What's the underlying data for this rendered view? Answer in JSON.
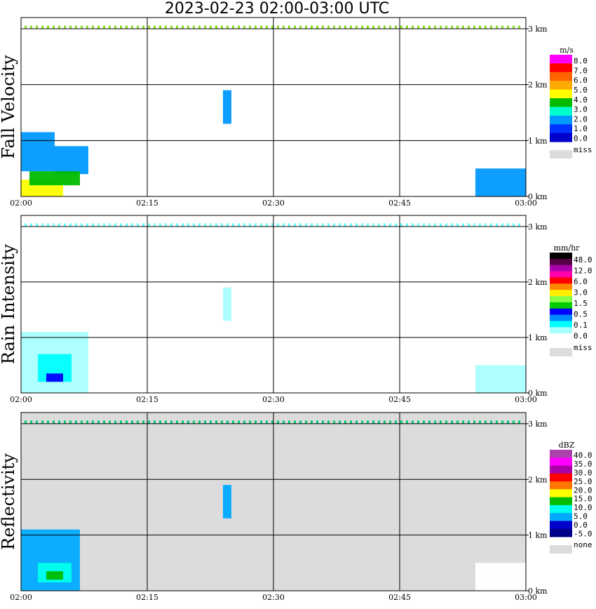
{
  "page": {
    "title": "2023-02-23  02:00-03:00 UTC"
  },
  "chart_data": [
    {
      "type": "heatmap",
      "title": "Fall Velocity",
      "ylabel": "Fall Velocity",
      "x_ticks": [
        "02:00",
        "02:15",
        "02:30",
        "02:45",
        "03:00"
      ],
      "y_ticks": [
        "0 km",
        "1 km",
        "2 km",
        "3 km"
      ],
      "xlim": [
        "02:00",
        "03:00"
      ],
      "ylim_km": [
        0,
        3.2
      ],
      "grid": true,
      "background": "#ffffff",
      "colorbar": {
        "unit": "m/s",
        "labels": [
          "8.0",
          "7.0",
          "6.0",
          "5.0",
          "4.0",
          "3.0",
          "2.0",
          "1.0",
          "0.0"
        ],
        "colors": [
          "#ff00ff",
          "#ff0000",
          "#ff6600",
          "#ffaa00",
          "#ffff00",
          "#00bb00",
          "#00ffcc",
          "#0099ff",
          "#0033ff",
          "#0000cc"
        ],
        "miss_label": "miss",
        "miss_color": "#dcdcdc"
      },
      "regions": [
        {
          "t0": "02:00",
          "t1": "02:04",
          "h0": 0.45,
          "h1": 1.15,
          "color": "#0099ff"
        },
        {
          "t0": "02:04",
          "t1": "02:08",
          "h0": 0.4,
          "h1": 0.9,
          "color": "#0099ff"
        },
        {
          "t0": "02:00",
          "t1": "02:05",
          "h0": 0.0,
          "h1": 0.3,
          "color": "#ffff00"
        },
        {
          "t0": "02:01",
          "t1": "02:07",
          "h0": 0.2,
          "h1": 0.45,
          "color": "#00bb00"
        },
        {
          "t0": "02:24",
          "t1": "02:25",
          "h0": 1.3,
          "h1": 1.9,
          "color": "#0099ff"
        },
        {
          "t0": "02:54",
          "t1": "03:00",
          "h0": 0.0,
          "h1": 0.5,
          "color": "#0099ff"
        }
      ],
      "echo_band_km": 3.0,
      "echo_band_color": "#88dd22"
    },
    {
      "type": "heatmap",
      "title": "Rain Intensity",
      "ylabel": "Rain Intensity",
      "x_ticks": [
        "02:00",
        "02:15",
        "02:30",
        "02:45",
        "03:00"
      ],
      "y_ticks": [
        "0 km",
        "1 km",
        "2 km",
        "3 km"
      ],
      "xlim": [
        "02:00",
        "03:00"
      ],
      "ylim_km": [
        0,
        3.2
      ],
      "grid": true,
      "background": "#ffffff",
      "colorbar": {
        "unit": "mm/hr",
        "labels": [
          "48.0",
          "12.0",
          "6.0",
          "3.0",
          "1.5",
          "0.5",
          "0.1",
          "0.0"
        ],
        "colors": [
          "#000000",
          "#550044",
          "#aa00aa",
          "#ff00aa",
          "#ff0000",
          "#ff8800",
          "#ffee00",
          "#88ff44",
          "#00cc00",
          "#0000ff",
          "#0088ff",
          "#00ffff",
          "#aaffff",
          "#ffffff"
        ],
        "miss_label": "miss",
        "miss_color": "#dcdcdc"
      },
      "regions": [
        {
          "t0": "02:00",
          "t1": "02:08",
          "h0": 0.0,
          "h1": 1.1,
          "color": "#aaffff"
        },
        {
          "t0": "02:02",
          "t1": "02:06",
          "h0": 0.2,
          "h1": 0.7,
          "color": "#00ffff"
        },
        {
          "t0": "02:03",
          "t1": "02:05",
          "h0": 0.2,
          "h1": 0.35,
          "color": "#0000ff"
        },
        {
          "t0": "02:24",
          "t1": "02:25",
          "h0": 1.3,
          "h1": 1.9,
          "color": "#aaffff"
        },
        {
          "t0": "02:54",
          "t1": "03:00",
          "h0": 0.0,
          "h1": 0.5,
          "color": "#aaffff"
        }
      ],
      "echo_band_km": 3.0,
      "echo_band_color": "#66ffff"
    },
    {
      "type": "heatmap",
      "title": "Reflectivity",
      "ylabel": "Reflectivity",
      "x_ticks": [
        "02:00",
        "02:15",
        "02:30",
        "02:45",
        "03:00"
      ],
      "y_ticks": [
        "0 km",
        "1 km",
        "2 km",
        "3 km"
      ],
      "xlim": [
        "02:00",
        "03:00"
      ],
      "ylim_km": [
        0,
        3.2
      ],
      "grid": true,
      "background": "#dcdcdc",
      "colorbar": {
        "unit": "dBZ",
        "labels": [
          "40.0",
          "35.0",
          "30.0",
          "25.0",
          "20.0",
          "15.0",
          "10.0",
          "5.0",
          "0.0",
          "-5.0"
        ],
        "colors": [
          "#aa44aa",
          "#ff00ff",
          "#aa00aa",
          "#ff0000",
          "#ff7700",
          "#ffff00",
          "#00bb00",
          "#00ffee",
          "#00aaff",
          "#0000cc",
          "#000088"
        ],
        "miss_label": "none",
        "miss_color": "#dcdcdc"
      },
      "regions": [
        {
          "t0": "02:00",
          "t1": "02:07",
          "h0": 0.0,
          "h1": 1.1,
          "color": "#00aaff"
        },
        {
          "t0": "02:02",
          "t1": "02:06",
          "h0": 0.15,
          "h1": 0.5,
          "color": "#00ffee"
        },
        {
          "t0": "02:03",
          "t1": "02:05",
          "h0": 0.2,
          "h1": 0.35,
          "color": "#00bb00"
        },
        {
          "t0": "02:24",
          "t1": "02:25",
          "h0": 1.3,
          "h1": 1.9,
          "color": "#00aaff"
        },
        {
          "t0": "02:54",
          "t1": "03:00",
          "h0": 0.0,
          "h1": 0.5,
          "color": "#ffffff"
        }
      ],
      "echo_band_km": 3.0,
      "echo_band_color": "#00cc77"
    }
  ]
}
